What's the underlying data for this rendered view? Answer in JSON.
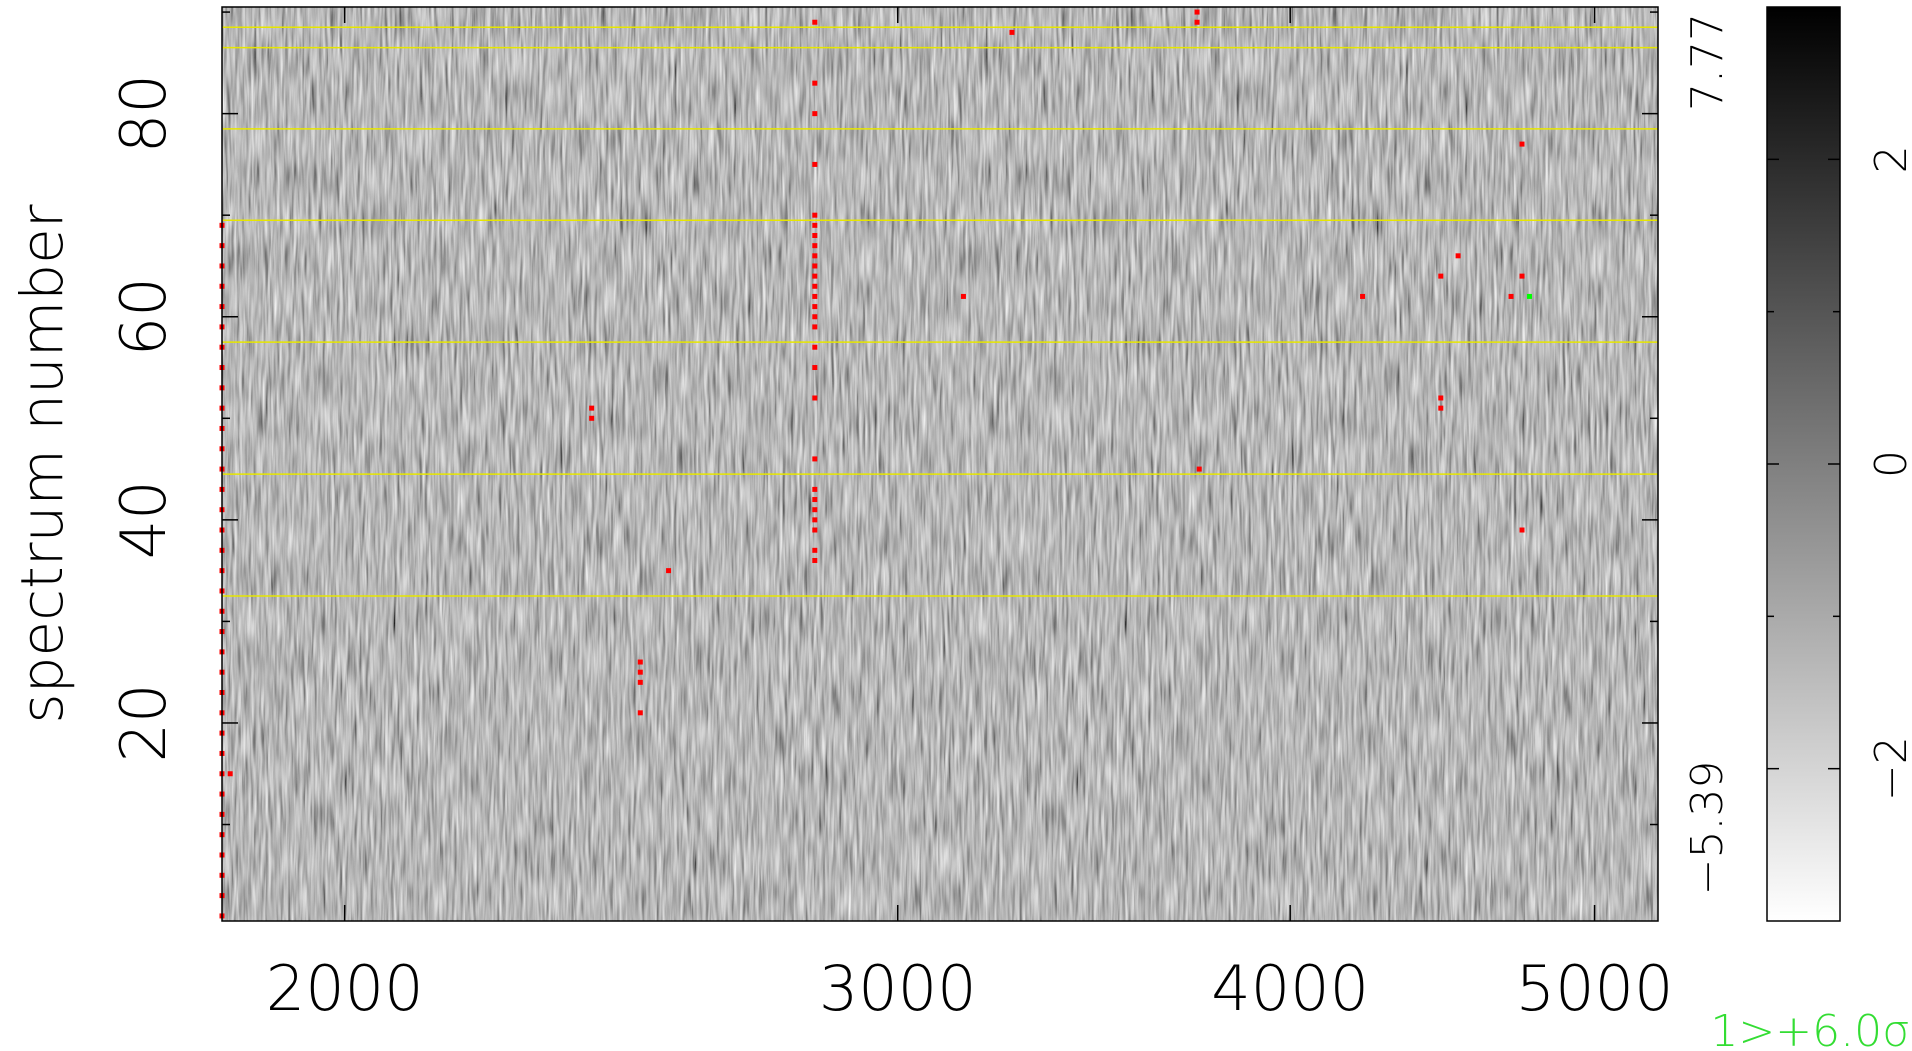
{
  "chart_data": {
    "type": "heatmap",
    "ylabel": "spectrum number",
    "xscale": "log",
    "xlim": [
      1828,
      5238
    ],
    "ylim": [
      0.5,
      90.5
    ],
    "xticks": [
      2000,
      3000,
      4000,
      5000
    ],
    "yticks": [
      20,
      40,
      60,
      80
    ],
    "yminor": [
      10,
      30,
      50,
      70,
      90
    ],
    "hlines": {
      "color": "#e6e600",
      "values": [
        88.5,
        86.5,
        78.5,
        69.5,
        57.5,
        44.5,
        32.5
      ]
    },
    "points": [
      {
        "color": "#ff0000",
        "x": [
          2823,
          2823,
          2823,
          2823,
          2823,
          2823,
          2823,
          2823,
          2823,
          2823,
          2823,
          2823,
          2823,
          2823,
          2823,
          2823,
          2823,
          2823,
          2823,
          2823,
          2823,
          2823,
          2823,
          2823,
          2823,
          2823,
          2823,
          3262,
          3736,
          3736,
          3148,
          2397,
          2397,
          2536,
          2484,
          2484,
          2484,
          2484,
          3742,
          4218,
          4467,
          4524,
          4467,
          4467,
          4703,
          4741,
          4741,
          4741,
          1839
        ],
        "y": [
          89,
          83,
          80,
          75,
          70,
          69,
          68,
          67,
          66,
          65,
          64,
          63,
          62,
          61,
          60,
          59,
          57,
          55,
          52,
          46,
          43,
          42,
          41,
          40,
          39,
          37,
          36,
          88,
          90,
          89,
          62,
          51,
          50,
          35,
          26,
          25,
          24,
          21,
          45,
          62,
          64,
          66,
          52,
          51,
          62,
          77,
          64,
          39,
          15
        ]
      },
      {
        "color": "#ff0000",
        "x": [
          1828,
          1828,
          1828,
          1828,
          1828,
          1828,
          1828,
          1828,
          1828,
          1828,
          1828,
          1828,
          1828,
          1828,
          1828,
          1828,
          1828,
          1828,
          1828,
          1828,
          1828,
          1828,
          1828,
          1828,
          1828,
          1828,
          1828,
          1828,
          1828,
          1828,
          1828,
          1828,
          1828,
          1828,
          1828
        ],
        "y": [
          1,
          3,
          5,
          7,
          9,
          11,
          13,
          15,
          17,
          19,
          21,
          23,
          25,
          27,
          29,
          31,
          33,
          35,
          37,
          39,
          41,
          43,
          45,
          47,
          49,
          51,
          53,
          55,
          57,
          59,
          61,
          63,
          65,
          67,
          69
        ]
      },
      {
        "color": "#00ff00",
        "x": [
          4767
        ],
        "y": [
          62
        ]
      }
    ],
    "colorbar": {
      "clim": [
        -3,
        3
      ],
      "ticks": [
        {
          "value": -2,
          "label": "−2"
        },
        0,
        2
      ],
      "minor": [
        -1,
        1
      ]
    },
    "range_max": 7.77,
    "range_min": {
      "value": -5.39,
      "label": "−5.39"
    },
    "threshold_label": "1>+6.0σ",
    "threshold_color": "#33dd33"
  }
}
